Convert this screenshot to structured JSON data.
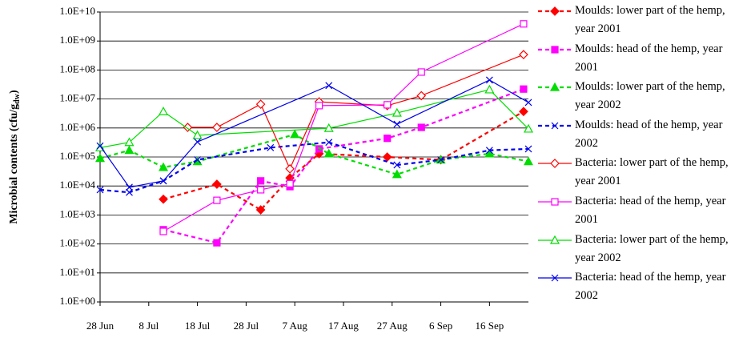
{
  "chart_data": {
    "type": "line",
    "y_label_parts": [
      "Microbial contents (cfu/g",
      "dw",
      ")"
    ],
    "log_scale_y": true,
    "grid": true,
    "legend": "right",
    "xlim": [
      "28 Jun",
      "24 Sep"
    ],
    "xticks": [
      "28 Jun",
      "8 Jul",
      "18 Jul",
      "28 Jul",
      "7 Aug",
      "17 Aug",
      "27 Aug",
      "6 Sep",
      "16 Sep"
    ],
    "ylim": [
      1,
      10000000000
    ],
    "yticks": [
      {
        "value": 1,
        "label": "1.0E+00"
      },
      {
        "value": 10,
        "label": "1.0E+01"
      },
      {
        "value": 100,
        "label": "1.0E+02"
      },
      {
        "value": 1000,
        "label": "1.0E+03"
      },
      {
        "value": 10000,
        "label": "1.0E+04"
      },
      {
        "value": 100000,
        "label": "1.0E+05"
      },
      {
        "value": 1000000,
        "label": "1.0E+06"
      },
      {
        "value": 10000000,
        "label": "1.0E+07"
      },
      {
        "value": 100000000,
        "label": "1.0E+08"
      },
      {
        "value": 1000000000,
        "label": "1.0E+09"
      },
      {
        "value": 10000000000,
        "label": "1.0E+10"
      }
    ],
    "series": [
      {
        "name": "Moulds: lower part of the hemp, year 2001",
        "color": "#ff0000",
        "marker": "diamond",
        "filled": true,
        "dashed": true,
        "x": [
          "11 Jul",
          "22 Jul",
          "31 Jul",
          "6 Aug",
          "12 Aug",
          "26 Aug",
          "6 Sep",
          "23 Sep"
        ],
        "values": [
          3500,
          11500,
          1500,
          19000,
          130000,
          100000,
          80000,
          3700000
        ]
      },
      {
        "name": "Moulds: head of the hemp, year 2001",
        "color": "#ff00ff",
        "marker": "square",
        "filled": true,
        "dashed": true,
        "x": [
          "11 Jul",
          "22 Jul",
          "31 Jul",
          "6 Aug",
          "12 Aug",
          "26 Aug",
          "2 Sep",
          "23 Sep"
        ],
        "values": [
          310,
          110,
          15000,
          9500,
          190000,
          440000,
          1050000,
          22000000
        ]
      },
      {
        "name": "Moulds: lower part of the hemp, year 2002",
        "color": "#00dd00",
        "marker": "triangle",
        "filled": true,
        "dashed": true,
        "x": [
          "28 Jun",
          "4 Jul",
          "11 Jul",
          "18 Jul",
          "7 Aug",
          "14 Aug",
          "28 Aug",
          "6 Sep",
          "16 Sep",
          "24 Sep"
        ],
        "values": [
          90000,
          170000,
          44000,
          70000,
          600000,
          130000,
          25000,
          80000,
          130000,
          70000
        ]
      },
      {
        "name": "Moulds: head of the hemp, year 2002",
        "color": "#0000ee",
        "marker": "x",
        "filled": false,
        "dashed": true,
        "x": [
          "28 Jun",
          "4 Jul",
          "11 Jul",
          "18 Jul",
          "2 Aug",
          "14 Aug",
          "28 Aug",
          "6 Sep",
          "16 Sep",
          "24 Sep"
        ],
        "values": [
          7400,
          6000,
          15000,
          80000,
          210000,
          320000,
          53000,
          80000,
          170000,
          190000
        ]
      },
      {
        "name": "Bacteria: lower part of the hemp, year 2001",
        "color": "#ff0000",
        "marker": "diamond",
        "filled": false,
        "dashed": false,
        "x": [
          "16 Jul",
          "22 Jul",
          "31 Jul",
          "6 Aug",
          "12 Aug",
          "26 Aug",
          "2 Sep",
          "23 Sep"
        ],
        "values": [
          1050000,
          1050000,
          6600000,
          39000,
          8000000,
          5900000,
          13000000,
          340000000
        ]
      },
      {
        "name": "Bacteria: head of the hemp, year 2001",
        "color": "#ff00ff",
        "marker": "square",
        "filled": false,
        "dashed": false,
        "x": [
          "11 Jul",
          "22 Jul",
          "31 Jul",
          "6 Aug",
          "12 Aug",
          "26 Aug",
          "2 Sep",
          "23 Sep"
        ],
        "values": [
          270,
          3200,
          7400,
          12000,
          5900000,
          6300000,
          85000000,
          3900000000
        ]
      },
      {
        "name": "Bacteria: lower part of the hemp, year 2002",
        "color": "#00dd00",
        "marker": "triangle",
        "filled": false,
        "dashed": false,
        "x": [
          "28 Jun",
          "4 Jul",
          "11 Jul",
          "18 Jul",
          "14 Aug",
          "28 Aug",
          "16 Sep",
          "24 Sep"
        ],
        "values": [
          210000,
          320000,
          3700000,
          560000,
          980000,
          3300000,
          21000000,
          930000
        ]
      },
      {
        "name": "Bacteria: head of the hemp, year 2002",
        "color": "#0000ee",
        "marker": "x",
        "filled": false,
        "dashed": false,
        "x": [
          "28 Jun",
          "4 Jul",
          "11 Jul",
          "18 Jul",
          "14 Aug",
          "28 Aug",
          "16 Sep",
          "24 Sep"
        ],
        "values": [
          240000,
          9000,
          15000,
          330000,
          29000000,
          1350000,
          45000000,
          7600000
        ]
      }
    ]
  }
}
